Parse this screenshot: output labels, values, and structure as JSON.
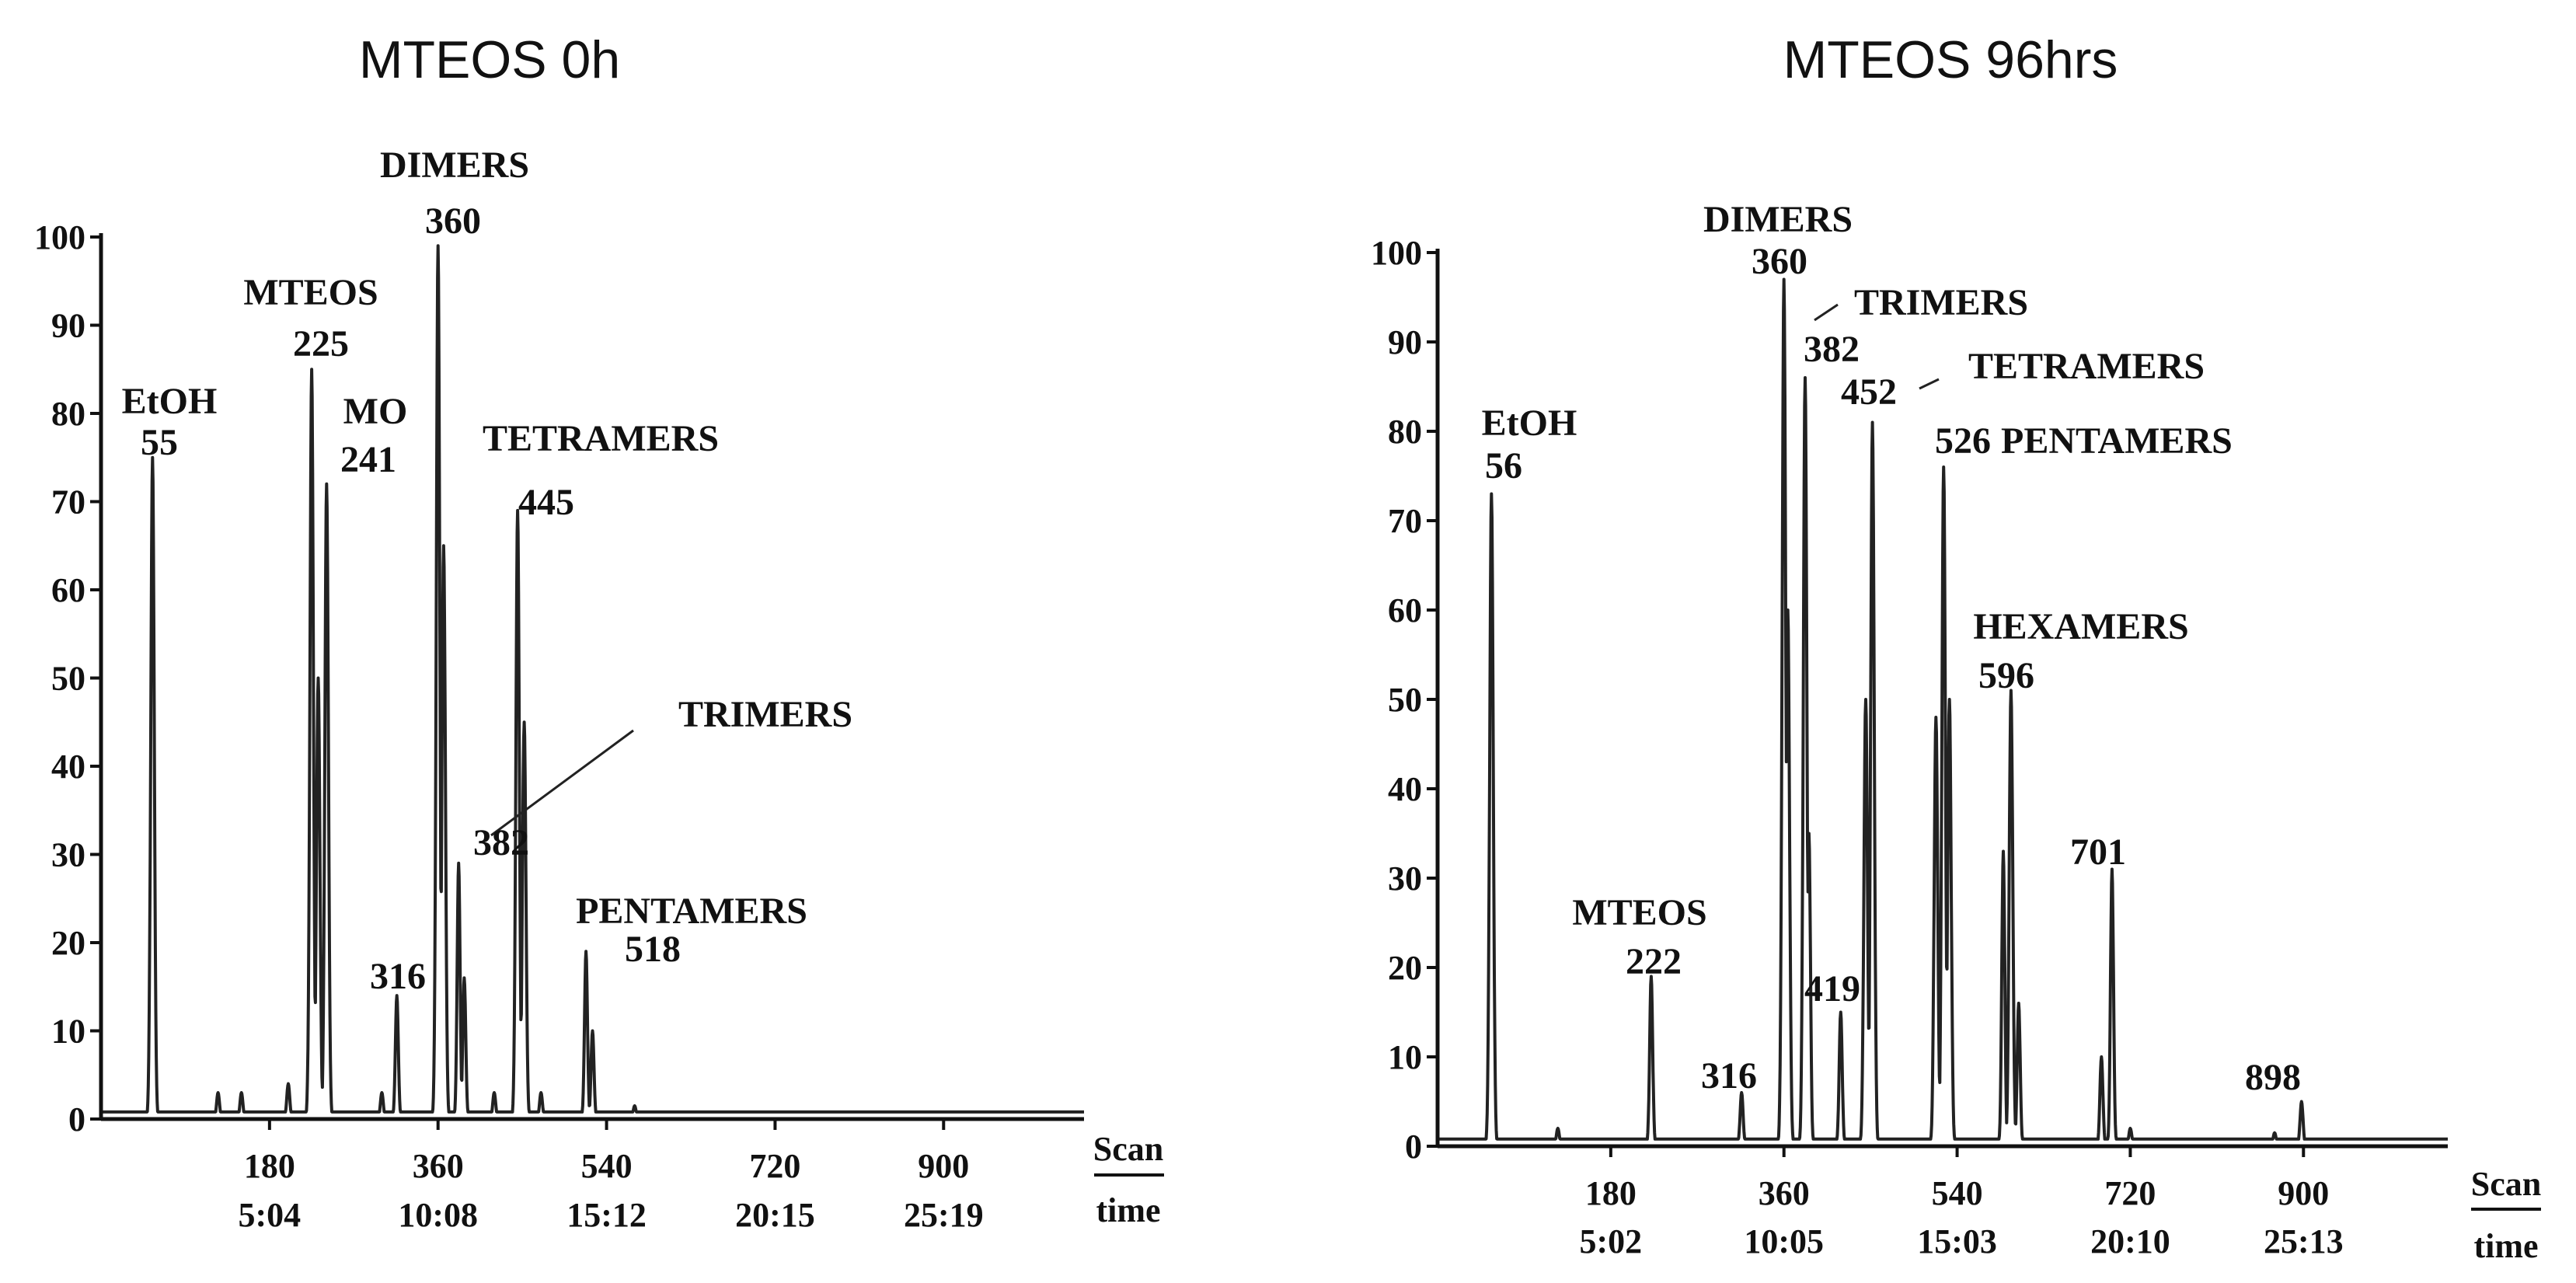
{
  "chart_data": [
    {
      "type": "line",
      "title": "MTEOS 0h",
      "xlabel": "Scan",
      "xlabel2": "time",
      "ylabel": "",
      "xlim": [
        0,
        1050
      ],
      "ylim": [
        0,
        100
      ],
      "yticks": [
        "0",
        "10",
        "20",
        "30",
        "40",
        "50",
        "60",
        "70",
        "80",
        "90",
        "100"
      ],
      "xticks": [
        {
          "scan": 180,
          "label": "180",
          "time": "5:04"
        },
        {
          "scan": 360,
          "label": "360",
          "time": "10:08"
        },
        {
          "scan": 540,
          "label": "540",
          "time": "15:12"
        },
        {
          "scan": 720,
          "label": "720",
          "time": "20:15"
        },
        {
          "scan": 900,
          "label": "900",
          "time": "25:19"
        }
      ],
      "peaks": [
        {
          "scan": 55,
          "height": 75
        },
        {
          "scan": 125,
          "height": 3
        },
        {
          "scan": 150,
          "height": 3
        },
        {
          "scan": 200,
          "height": 4
        },
        {
          "scan": 225,
          "height": 85
        },
        {
          "scan": 232,
          "height": 50
        },
        {
          "scan": 241,
          "height": 72
        },
        {
          "scan": 300,
          "height": 3
        },
        {
          "scan": 316,
          "height": 14
        },
        {
          "scan": 360,
          "height": 99
        },
        {
          "scan": 366,
          "height": 65
        },
        {
          "scan": 382,
          "height": 29
        },
        {
          "scan": 388,
          "height": 16
        },
        {
          "scan": 420,
          "height": 3
        },
        {
          "scan": 445,
          "height": 69
        },
        {
          "scan": 452,
          "height": 45
        },
        {
          "scan": 470,
          "height": 3
        },
        {
          "scan": 518,
          "height": 19
        },
        {
          "scan": 525,
          "height": 10
        },
        {
          "scan": 570,
          "height": 1.5
        }
      ],
      "annotations": [
        {
          "name": "EtOH",
          "scan_label": "55"
        },
        {
          "name": "MTEOS",
          "scan_label": "225"
        },
        {
          "name": "MO",
          "scan_label": "241"
        },
        {
          "name": "316",
          "scan_label": ""
        },
        {
          "name": "DIMERS",
          "scan_label": "360"
        },
        {
          "name": "TRIMERS",
          "scan_label": "382"
        },
        {
          "name": "TETRAMERS",
          "scan_label": "445"
        },
        {
          "name": "PENTAMERS",
          "scan_label": "518"
        }
      ]
    },
    {
      "type": "line",
      "title": "MTEOS 96hrs",
      "xlabel": "Scan",
      "xlabel2": "time",
      "ylabel": "",
      "xlim": [
        0,
        1050
      ],
      "ylim": [
        0,
        100
      ],
      "yticks": [
        "0",
        "10",
        "20",
        "30",
        "40",
        "50",
        "60",
        "70",
        "80",
        "90",
        "100"
      ],
      "xticks": [
        {
          "scan": 180,
          "label": "180",
          "time": "5:02"
        },
        {
          "scan": 360,
          "label": "360",
          "time": "10:05"
        },
        {
          "scan": 540,
          "label": "540",
          "time": "15:03"
        },
        {
          "scan": 720,
          "label": "720",
          "time": "20:10"
        },
        {
          "scan": 900,
          "label": "900",
          "time": "25:13"
        }
      ],
      "peaks": [
        {
          "scan": 56,
          "height": 73
        },
        {
          "scan": 125,
          "height": 2
        },
        {
          "scan": 222,
          "height": 19
        },
        {
          "scan": 316,
          "height": 6
        },
        {
          "scan": 360,
          "height": 97
        },
        {
          "scan": 364,
          "height": 60
        },
        {
          "scan": 382,
          "height": 86
        },
        {
          "scan": 386,
          "height": 35
        },
        {
          "scan": 419,
          "height": 15
        },
        {
          "scan": 445,
          "height": 50
        },
        {
          "scan": 452,
          "height": 81
        },
        {
          "scan": 518,
          "height": 48
        },
        {
          "scan": 526,
          "height": 76
        },
        {
          "scan": 532,
          "height": 50
        },
        {
          "scan": 588,
          "height": 33
        },
        {
          "scan": 596,
          "height": 51
        },
        {
          "scan": 604,
          "height": 16
        },
        {
          "scan": 690,
          "height": 10
        },
        {
          "scan": 701,
          "height": 31
        },
        {
          "scan": 720,
          "height": 2
        },
        {
          "scan": 870,
          "height": 1.5
        },
        {
          "scan": 898,
          "height": 5
        }
      ],
      "annotations": [
        {
          "name": "EtOH",
          "scan_label": "56"
        },
        {
          "name": "MTEOS",
          "scan_label": "222"
        },
        {
          "name": "316",
          "scan_label": ""
        },
        {
          "name": "DIMERS",
          "scan_label": "360"
        },
        {
          "name": "TRIMERS",
          "scan_label": "382"
        },
        {
          "name": "419",
          "scan_label": ""
        },
        {
          "name": "TETRAMERS",
          "scan_label": "452"
        },
        {
          "name": "PENTAMERS",
          "scan_label": "526"
        },
        {
          "name": "HEXAMERS",
          "scan_label": "596"
        },
        {
          "name": "701",
          "scan_label": ""
        },
        {
          "name": "898",
          "scan_label": ""
        }
      ]
    }
  ]
}
